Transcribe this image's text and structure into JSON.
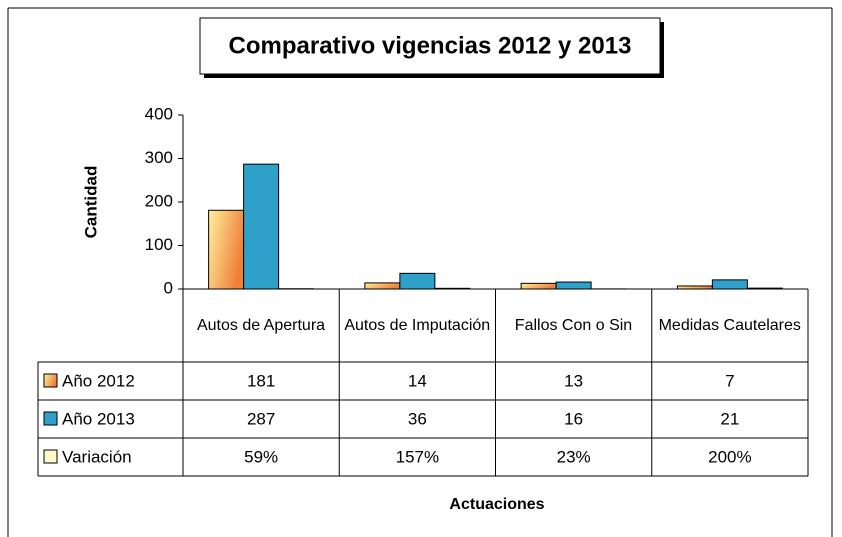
{
  "chart_data": {
    "type": "bar",
    "title": "Comparativo vigencias 2012 y 2013",
    "y_label": "Cantidad",
    "x_label": "Actuaciones",
    "categories": [
      "Autos de Apertura",
      "Autos de Imputación",
      "Fallos Con o Sin",
      "Medidas Cautelares"
    ],
    "series": [
      {
        "name": "Año 2012",
        "color": "#f0803a",
        "values": [
          181,
          14,
          13,
          7
        ]
      },
      {
        "name": "Año 2013",
        "color": "#2fa0c9",
        "values": [
          287,
          36,
          16,
          21
        ]
      },
      {
        "name": "Variación",
        "color": "#fff8c8",
        "values": [
          0.59,
          1.57,
          0.23,
          2.0
        ],
        "value_labels": [
          "59%",
          "157%",
          "23%",
          "200%"
        ]
      }
    ],
    "ylim": [
      0,
      400
    ],
    "yticks": [
      0,
      100,
      200,
      300,
      400
    ],
    "data_table": true
  }
}
